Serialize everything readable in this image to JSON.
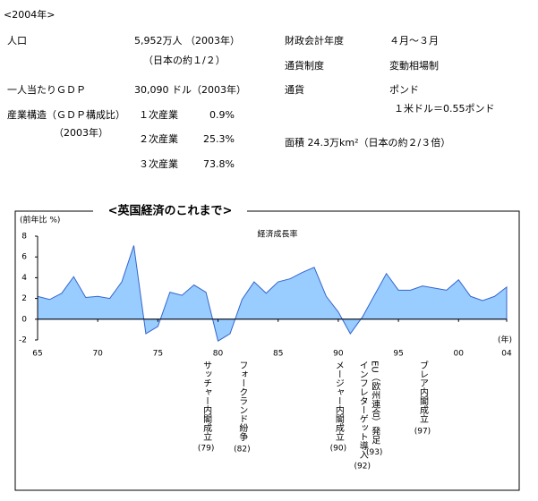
{
  "info": {
    "title": "<2004年>",
    "population": {
      "label": "人口",
      "value": "5,952万人 （2003年）",
      "note": "（日本の約１/２）"
    },
    "gdp_per_capita": {
      "label": "一人当たりＧＤＰ",
      "value": "30,090 ドル（2003年）"
    },
    "industry": {
      "label": "産業構造（ＧＤＰ構成比）",
      "note": "（2003年）",
      "rows": [
        [
          "１次産業",
          "0.9%"
        ],
        [
          "２次産業",
          "25.3%"
        ],
        [
          "３次産業",
          "73.8%"
        ]
      ]
    },
    "fiscal_year": {
      "label": "財政会計年度",
      "value": "４月～３月"
    },
    "currency_system": {
      "label": "通貨制度",
      "value": "変動相場制"
    },
    "currency": {
      "label": "通貨",
      "value": "ポンド",
      "note": "１米ドル＝0.55ポンド"
    },
    "area": "面積 24.3万km²（日本の約２/３倍）"
  },
  "chart_data": {
    "type": "area",
    "title": "<英国経済のこれまで>",
    "ylabel": "(前年比 %)",
    "xlabel": "(年)",
    "x": [
      1965,
      1966,
      1967,
      1968,
      1969,
      1970,
      1971,
      1972,
      1973,
      1974,
      1975,
      1976,
      1977,
      1978,
      1979,
      1980,
      1981,
      1982,
      1983,
      1984,
      1985,
      1986,
      1987,
      1988,
      1989,
      1990,
      1991,
      1992,
      1993,
      1994,
      1995,
      1996,
      1997,
      1998,
      1999,
      2000,
      2001,
      2002,
      2003,
      2004
    ],
    "series": [
      {
        "name": "経済成長率",
        "color": "#99ccff",
        "values": [
          2.2,
          1.9,
          2.5,
          4.1,
          2.1,
          2.2,
          2.0,
          3.6,
          7.1,
          -1.4,
          -0.7,
          2.6,
          2.3,
          3.3,
          2.6,
          -2.1,
          -1.4,
          1.9,
          3.6,
          2.5,
          3.6,
          3.9,
          4.5,
          5.0,
          2.2,
          0.7,
          -1.4,
          0.2,
          2.3,
          4.4,
          2.8,
          2.8,
          3.2,
          3.0,
          2.8,
          3.8,
          2.2,
          1.8,
          2.2,
          3.1
        ]
      }
    ],
    "xlim": [
      1965,
      2004
    ],
    "ylim": [
      -2,
      8
    ],
    "xticks": [
      {
        "value": 1965,
        "label": "65"
      },
      {
        "value": 1970,
        "label": "70"
      },
      {
        "value": 1975,
        "label": "75"
      },
      {
        "value": 1980,
        "label": "80"
      },
      {
        "value": 1985,
        "label": "85"
      },
      {
        "value": 1990,
        "label": "90"
      },
      {
        "value": 1995,
        "label": "95"
      },
      {
        "value": 2000,
        "label": "00"
      },
      {
        "value": 2004,
        "label": "04"
      }
    ],
    "yticks": [
      -2,
      0,
      2,
      4,
      6,
      8
    ],
    "annotations": [
      {
        "x": 1979,
        "text": "サッチャー内閣成立",
        "label": "(79)"
      },
      {
        "x": 1982,
        "text": "フォークランド紛争",
        "label": "(82)"
      },
      {
        "x": 1990,
        "text": "メージャー内閣成立",
        "label": "(90)"
      },
      {
        "x": 1992,
        "text": "インフレターゲット導入",
        "label": "(92)"
      },
      {
        "x": 1993,
        "text": "EU（欧州連合）発足",
        "label": "(93)"
      },
      {
        "x": 1997,
        "text": "ブレア内閣成立",
        "label": "(97)"
      }
    ]
  }
}
